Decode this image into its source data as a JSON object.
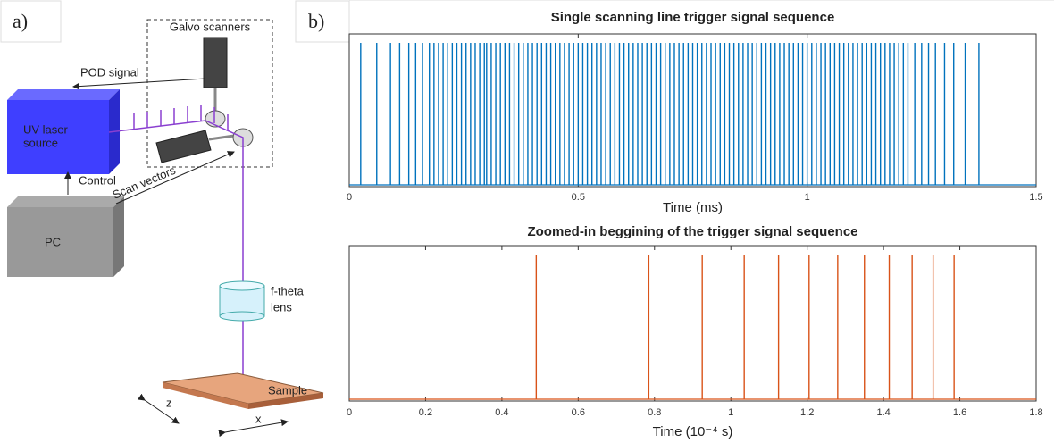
{
  "labels": {
    "a": "a)",
    "b": "b)"
  },
  "panel_a": {
    "galvo": "Galvo scanners",
    "pod": "POD signal",
    "laser_line1": "UV laser",
    "laser_line2": "source",
    "control": "Control",
    "scan": "Scan vectors",
    "pc": "PC",
    "lens_line1": "f-theta",
    "lens_line2": "lens",
    "sample": "Sample",
    "z": "z",
    "x": "x"
  },
  "chart_data": [
    {
      "type": "pulse",
      "title": "Single scanning line trigger signal sequence",
      "x_label": "Time (ms)",
      "color": "#0072bd",
      "xlim": [
        0,
        1.5
      ],
      "xticks": [
        0,
        0.5,
        1,
        1.5
      ],
      "x": [
        0.025,
        0.06,
        0.09,
        0.11,
        0.13,
        0.145,
        0.16,
        0.175,
        0.185,
        0.195,
        0.205,
        0.215,
        0.225,
        0.235,
        0.245,
        0.255,
        0.265,
        0.275,
        0.285,
        0.295,
        0.3,
        0.31,
        0.32,
        0.33,
        0.34,
        0.35,
        0.36,
        0.37,
        0.38,
        0.39,
        0.4,
        0.41,
        0.42,
        0.43,
        0.44,
        0.45,
        0.46,
        0.47,
        0.48,
        0.49,
        0.5,
        0.51,
        0.52,
        0.53,
        0.54,
        0.55,
        0.56,
        0.57,
        0.58,
        0.59,
        0.6,
        0.61,
        0.62,
        0.63,
        0.64,
        0.65,
        0.66,
        0.67,
        0.68,
        0.69,
        0.7,
        0.71,
        0.72,
        0.73,
        0.74,
        0.75,
        0.76,
        0.77,
        0.78,
        0.79,
        0.8,
        0.81,
        0.82,
        0.83,
        0.84,
        0.85,
        0.86,
        0.87,
        0.88,
        0.89,
        0.9,
        0.91,
        0.92,
        0.93,
        0.94,
        0.95,
        0.96,
        0.97,
        0.98,
        0.99,
        1.0,
        1.01,
        1.02,
        1.03,
        1.04,
        1.05,
        1.06,
        1.07,
        1.08,
        1.09,
        1.1,
        1.11,
        1.12,
        1.13,
        1.14,
        1.15,
        1.16,
        1.17,
        1.18,
        1.19,
        1.2,
        1.21,
        1.22,
        1.235,
        1.25,
        1.265,
        1.28,
        1.3,
        1.32,
        1.345,
        1.375
      ]
    },
    {
      "type": "pulse",
      "title": "Zoomed-in beggining of the trigger signal sequence",
      "x_label": "Time (10⁻⁴ s)",
      "color": "#d95319",
      "xlim": [
        0,
        1.8
      ],
      "xticks": [
        0,
        0.2,
        0.4,
        0.6,
        0.8,
        1,
        1.2,
        1.4,
        1.6,
        1.8
      ],
      "x": [
        0.49,
        0.785,
        0.925,
        1.035,
        1.125,
        1.205,
        1.28,
        1.35,
        1.415,
        1.475,
        1.53,
        1.585
      ]
    }
  ]
}
